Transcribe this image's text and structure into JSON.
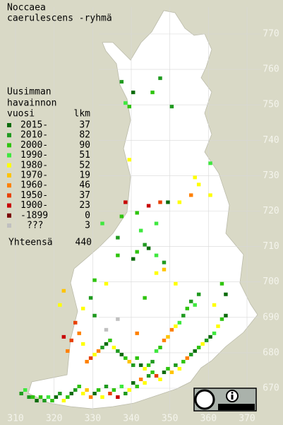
{
  "title": [
    "Noccaea",
    "caerulescens -ryhmä"
  ],
  "legend": {
    "heading": [
      "Uusimman",
      "havainnon",
      "vuosi"
    ],
    "count_heading": "lkm",
    "entries": [
      {
        "label": "2015-",
        "count": 37,
        "color": "#0b6b0b"
      },
      {
        "label": "2010-",
        "count": 82,
        "color": "#1f9a1f"
      },
      {
        "label": "2000-",
        "count": 90,
        "color": "#2ec40e"
      },
      {
        "label": "1990-",
        "count": 51,
        "color": "#3ee83e"
      },
      {
        "label": "1980-",
        "count": 52,
        "color": "#ffff00"
      },
      {
        "label": "1970-",
        "count": 19,
        "color": "#ffc400"
      },
      {
        "label": "1960-",
        "count": 46,
        "color": "#ff8000"
      },
      {
        "label": "1950-",
        "count": 37,
        "color": "#e84000"
      },
      {
        "label": "1900-",
        "count": 23,
        "color": "#c80000"
      },
      {
        "label": "-1899",
        "count": 0,
        "color": "#7a0000"
      },
      {
        "label": "???",
        "count": 3,
        "color": "#c0c0c0"
      }
    ],
    "total_label": "Yhteensä",
    "total": 440
  },
  "xticks": [
    310,
    320,
    330,
    340,
    350,
    360,
    370
  ],
  "yticks": [
    670,
    680,
    690,
    700,
    710,
    720,
    730,
    740,
    750,
    760,
    770
  ],
  "squares": [
    [
      313,
      667,
      1
    ],
    [
      314,
      667,
      2
    ],
    [
      315,
      666,
      0
    ],
    [
      316,
      667,
      2
    ],
    [
      317,
      666,
      1
    ],
    [
      318,
      667,
      3
    ],
    [
      319,
      666,
      2
    ],
    [
      320,
      667,
      0
    ],
    [
      321,
      668,
      1
    ],
    [
      322,
      666,
      4
    ],
    [
      323,
      667,
      2
    ],
    [
      324,
      668,
      0
    ],
    [
      325,
      669,
      1
    ],
    [
      326,
      670,
      2
    ],
    [
      327,
      668,
      4
    ],
    [
      328,
      669,
      5
    ],
    [
      329,
      667,
      6
    ],
    [
      330,
      668,
      0
    ],
    [
      331,
      669,
      2
    ],
    [
      332,
      667,
      4
    ],
    [
      333,
      670,
      1
    ],
    [
      334,
      668,
      7
    ],
    [
      335,
      669,
      2
    ],
    [
      336,
      667,
      8
    ],
    [
      337,
      670,
      3
    ],
    [
      338,
      668,
      1
    ],
    [
      339,
      669,
      4
    ],
    [
      340,
      671,
      0
    ],
    [
      341,
      670,
      2
    ],
    [
      342,
      672,
      6
    ],
    [
      343,
      671,
      4
    ],
    [
      344,
      673,
      1
    ],
    [
      345,
      674,
      2
    ],
    [
      346,
      673,
      7
    ],
    [
      347,
      672,
      4
    ],
    [
      348,
      674,
      0
    ],
    [
      349,
      675,
      2
    ],
    [
      350,
      674,
      5
    ],
    [
      351,
      676,
      1
    ],
    [
      352,
      675,
      4
    ],
    [
      353,
      677,
      2
    ],
    [
      354,
      678,
      6
    ],
    [
      355,
      679,
      1
    ],
    [
      356,
      680,
      0
    ],
    [
      357,
      681,
      2
    ],
    [
      358,
      682,
      4
    ],
    [
      359,
      683,
      1
    ],
    [
      360,
      684,
      0
    ],
    [
      361,
      685,
      3
    ],
    [
      362,
      687,
      4
    ],
    [
      363,
      689,
      2
    ],
    [
      364,
      690,
      0
    ],
    [
      328,
      677,
      6
    ],
    [
      329,
      678,
      7
    ],
    [
      330,
      679,
      4
    ],
    [
      331,
      680,
      6
    ],
    [
      332,
      681,
      1
    ],
    [
      333,
      682,
      0
    ],
    [
      334,
      683,
      2
    ],
    [
      335,
      681,
      4
    ],
    [
      336,
      680,
      1
    ],
    [
      337,
      679,
      0
    ],
    [
      338,
      678,
      2
    ],
    [
      339,
      677,
      5
    ],
    [
      340,
      676,
      1
    ],
    [
      341,
      678,
      2
    ],
    [
      342,
      676,
      0
    ],
    [
      343,
      675,
      4
    ],
    [
      344,
      676,
      2
    ],
    [
      345,
      677,
      1
    ],
    [
      346,
      680,
      3
    ],
    [
      347,
      681,
      2
    ],
    [
      348,
      683,
      6
    ],
    [
      349,
      684,
      5
    ],
    [
      350,
      686,
      6
    ],
    [
      351,
      687,
      4
    ],
    [
      352,
      688,
      3
    ],
    [
      353,
      690,
      1
    ],
    [
      354,
      692,
      2
    ],
    [
      355,
      694,
      1
    ],
    [
      356,
      693,
      3
    ],
    [
      357,
      696,
      1
    ],
    [
      361,
      693,
      4
    ],
    [
      364,
      696,
      0
    ],
    [
      363,
      699,
      2
    ],
    [
      311,
      668,
      1
    ],
    [
      312,
      669,
      3
    ],
    [
      323,
      680,
      6
    ],
    [
      322,
      684,
      8
    ],
    [
      324,
      683,
      7
    ],
    [
      326,
      685,
      6
    ],
    [
      325,
      688,
      7
    ],
    [
      327,
      682,
      4
    ],
    [
      321,
      693,
      4
    ],
    [
      322,
      697,
      5
    ],
    [
      330,
      690,
      1
    ],
    [
      333,
      686,
      10
    ],
    [
      336,
      689,
      10
    ],
    [
      341,
      685,
      6
    ],
    [
      343,
      695,
      2
    ],
    [
      346,
      702,
      4
    ],
    [
      348,
      703,
      5
    ],
    [
      351,
      699,
      4
    ],
    [
      340,
      706,
      0
    ],
    [
      341,
      708,
      2
    ],
    [
      343,
      710,
      1
    ],
    [
      344,
      709,
      0
    ],
    [
      346,
      707,
      3
    ],
    [
      348,
      705,
      1
    ],
    [
      336,
      712,
      1
    ],
    [
      332,
      716,
      3
    ],
    [
      337,
      718,
      2
    ],
    [
      342,
      714,
      3
    ],
    [
      346,
      716,
      3
    ],
    [
      349,
      722,
      0
    ],
    [
      338,
      722,
      8
    ],
    [
      344,
      721,
      8
    ],
    [
      347,
      722,
      7
    ],
    [
      352,
      722,
      4
    ],
    [
      355,
      724,
      6
    ],
    [
      360,
      724,
      4
    ],
    [
      357,
      727,
      4
    ],
    [
      360,
      733,
      3
    ],
    [
      356,
      729,
      4
    ],
    [
      339,
      734,
      4
    ],
    [
      341,
      719,
      2
    ],
    [
      337,
      756,
      1
    ],
    [
      338,
      750,
      3
    ],
    [
      339,
      749,
      2
    ],
    [
      340,
      753,
      0
    ],
    [
      345,
      753,
      2
    ],
    [
      350,
      749,
      1
    ],
    [
      347,
      757,
      1
    ],
    [
      336,
      707,
      2
    ],
    [
      333,
      699,
      4
    ],
    [
      327,
      692,
      4
    ],
    [
      329,
      695,
      1
    ],
    [
      330,
      700,
      2
    ]
  ]
}
